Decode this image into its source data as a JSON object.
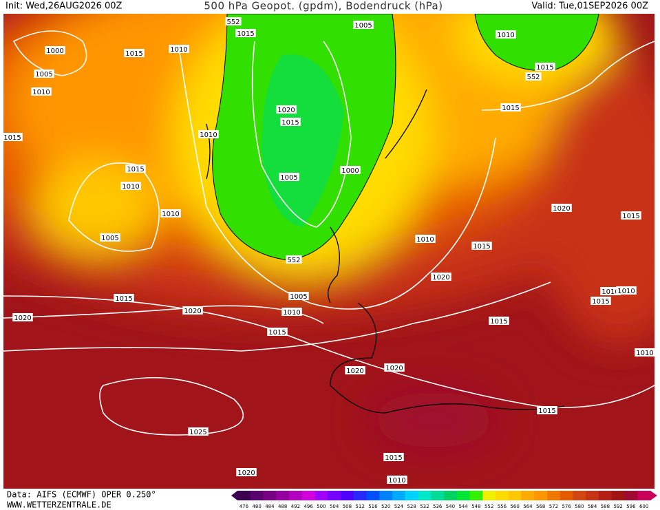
{
  "header": {
    "init": "Init: Wed,26AUG2026 00Z",
    "title": "500 hPa Geopot. (gpdm), Bodendruck (hPa)",
    "valid": "Valid: Tue,01SEP2026 00Z"
  },
  "map": {
    "labels": [
      "1000",
      "1005",
      "1010",
      "1015",
      "1015",
      "1010",
      "1015",
      "552",
      "1005",
      "1010",
      "1015",
      "552",
      "1015",
      "1020",
      "1015",
      "1010",
      "1015",
      "1010",
      "1005",
      "1000",
      "1010",
      "1005",
      "552",
      "1010",
      "1015",
      "1020",
      "1015",
      "1020",
      "1005",
      "1010",
      "1015",
      "1020",
      "1020",
      "1015",
      "1015",
      "1010",
      "1010",
      "1015",
      "1010",
      "1020",
      "1020",
      "1015",
      "1025",
      "1015",
      "1020",
      "1010"
    ]
  },
  "legend": {
    "values": [
      476,
      480,
      484,
      488,
      492,
      496,
      500,
      504,
      508,
      512,
      516,
      520,
      524,
      528,
      532,
      536,
      540,
      544,
      548,
      552,
      556,
      560,
      564,
      568,
      572,
      576,
      580,
      584,
      588,
      592,
      596,
      600
    ],
    "colors": [
      "#3c0050",
      "#5a006e",
      "#780082",
      "#9600a0",
      "#b400be",
      "#d200dc",
      "#a000ff",
      "#7800ff",
      "#5000ff",
      "#2828ff",
      "#0050ff",
      "#0082ff",
      "#00aaff",
      "#00d2ff",
      "#00e6c8",
      "#00dc96",
      "#00d264",
      "#00e632",
      "#32f000",
      "#f0f000",
      "#ffdc00",
      "#ffc800",
      "#ffaa00",
      "#ff9600",
      "#f07800",
      "#e65a00",
      "#d24614",
      "#c83214",
      "#b41e14",
      "#a01414",
      "#a00a32",
      "#c8005a"
    ]
  },
  "footer": {
    "source": "Data: AIFS (ECMWF) OPER 0.250°",
    "site": "WWW.WETTERZENTRALE.DE"
  }
}
